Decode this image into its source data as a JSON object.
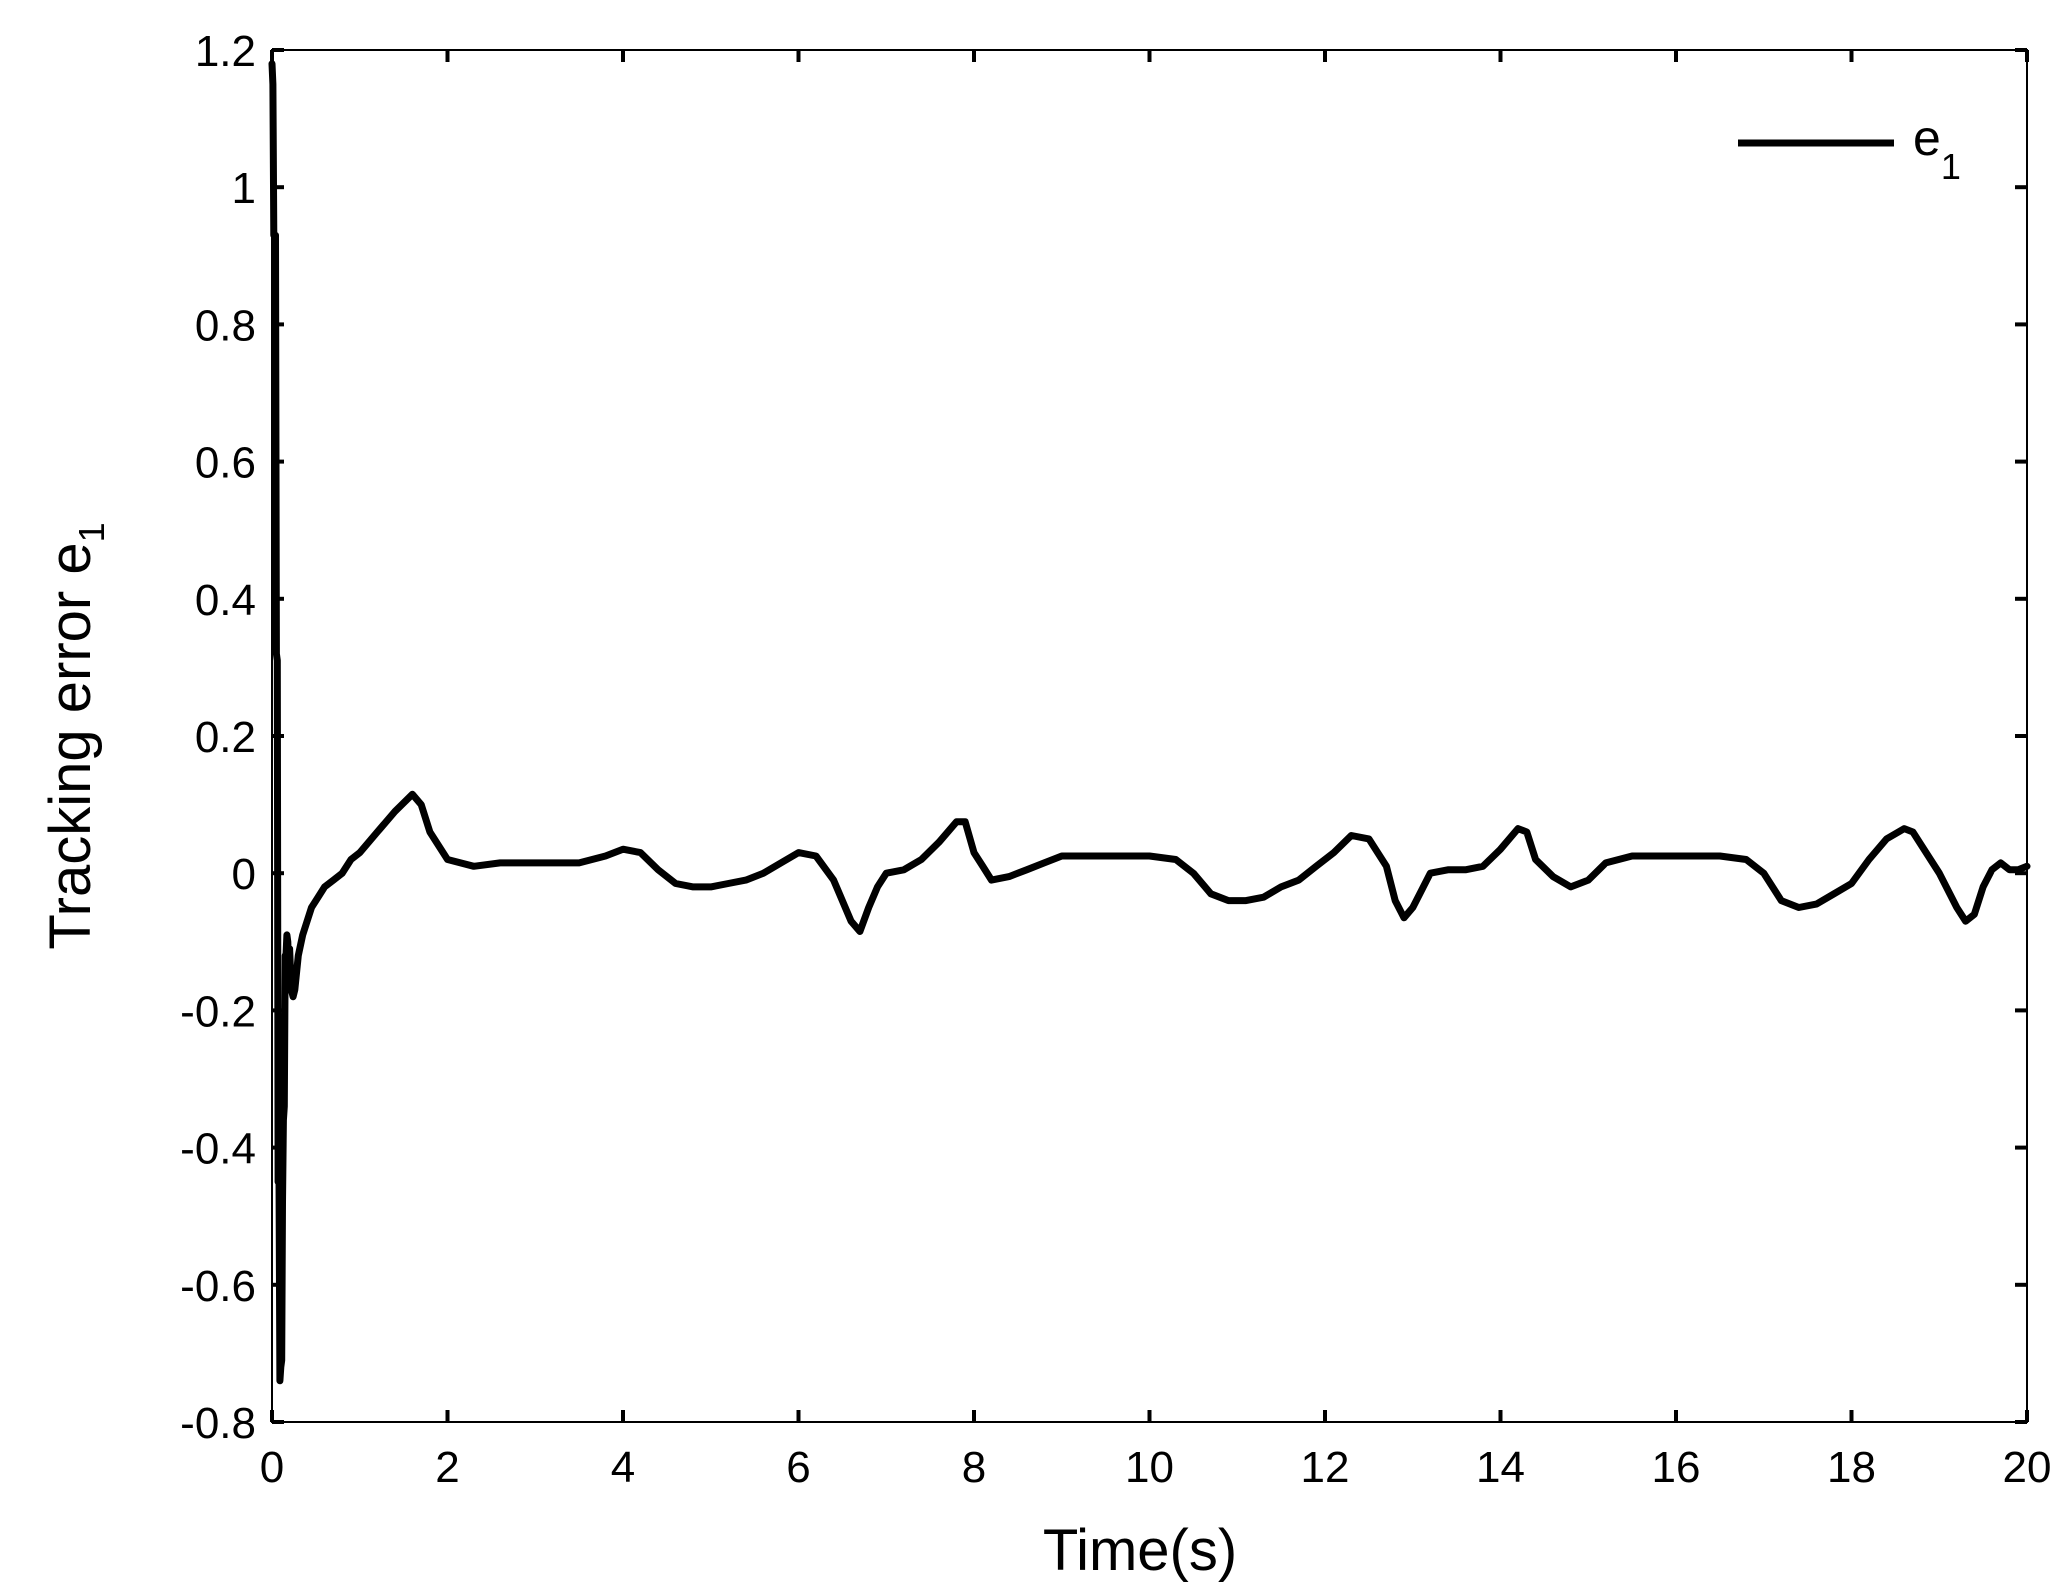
{
  "chart_data": {
    "type": "line",
    "title": "",
    "xlabel": "Time(s)",
    "ylabel": {
      "base": "Tracking error e",
      "subscript": "1"
    },
    "xlim": [
      0,
      20
    ],
    "ylim": [
      -0.8,
      1.2
    ],
    "xticks": [
      0,
      2,
      4,
      6,
      8,
      10,
      12,
      14,
      16,
      18,
      20
    ],
    "yticks": [
      -0.8,
      -0.6,
      -0.4,
      -0.2,
      0,
      0.2,
      0.4,
      0.6,
      0.8,
      1,
      1.2
    ],
    "xtick_labels": [
      "0",
      "2",
      "4",
      "6",
      "8",
      "10",
      "12",
      "14",
      "16",
      "18",
      "20"
    ],
    "ytick_labels": [
      "-0.8",
      "-0.6",
      "-0.4",
      "-0.2",
      "0",
      "0.2",
      "0.4",
      "0.6",
      "0.8",
      "1",
      "1.2"
    ],
    "grid": false,
    "legend_position": "top-right",
    "series": [
      {
        "name": {
          "base": "e",
          "subscript": "1"
        },
        "color": "#000000",
        "x": [
          0.0,
          0.01,
          0.02,
          0.04,
          0.05,
          0.06,
          0.07,
          0.08,
          0.09,
          0.1,
          0.11,
          0.12,
          0.13,
          0.14,
          0.15,
          0.16,
          0.17,
          0.18,
          0.19,
          0.2,
          0.22,
          0.24,
          0.26,
          0.3,
          0.35,
          0.4,
          0.45,
          0.5,
          0.6,
          0.7,
          0.8,
          0.9,
          1.0,
          1.2,
          1.4,
          1.6,
          1.7,
          1.8,
          2.0,
          2.3,
          2.6,
          3.0,
          3.5,
          3.8,
          4.0,
          4.2,
          4.4,
          4.6,
          4.8,
          5.0,
          5.2,
          5.4,
          5.6,
          5.8,
          6.0,
          6.2,
          6.4,
          6.6,
          6.7,
          6.8,
          6.9,
          7.0,
          7.2,
          7.4,
          7.6,
          7.8,
          7.9,
          8.0,
          8.1,
          8.2,
          8.4,
          8.6,
          8.8,
          9.0,
          9.3,
          9.6,
          10.0,
          10.3,
          10.5,
          10.7,
          10.9,
          11.1,
          11.3,
          11.5,
          11.7,
          11.9,
          12.1,
          12.3,
          12.5,
          12.7,
          12.8,
          12.9,
          13.0,
          13.2,
          13.4,
          13.6,
          13.8,
          14.0,
          14.2,
          14.3,
          14.4,
          14.6,
          14.8,
          15.0,
          15.2,
          15.5,
          16.0,
          16.5,
          16.8,
          17.0,
          17.2,
          17.4,
          17.6,
          17.8,
          18.0,
          18.2,
          18.4,
          18.6,
          18.7,
          18.8,
          19.0,
          19.2,
          19.3,
          19.4,
          19.5,
          19.6,
          19.7,
          19.8,
          19.9,
          20.0
        ],
        "y": [
          1.18,
          1.15,
          0.93,
          0.93,
          0.32,
          0.31,
          -0.45,
          -0.44,
          -0.74,
          -0.72,
          -0.71,
          -0.48,
          -0.36,
          -0.34,
          -0.12,
          -0.12,
          -0.09,
          -0.1,
          -0.14,
          -0.11,
          -0.17,
          -0.18,
          -0.17,
          -0.12,
          -0.09,
          -0.07,
          -0.05,
          -0.04,
          -0.02,
          -0.01,
          0.0,
          0.02,
          0.03,
          0.06,
          0.09,
          0.115,
          0.1,
          0.06,
          0.02,
          0.01,
          0.015,
          0.015,
          0.015,
          0.025,
          0.035,
          0.03,
          0.005,
          -0.015,
          -0.02,
          -0.02,
          -0.015,
          -0.01,
          0.0,
          0.015,
          0.03,
          0.025,
          -0.01,
          -0.07,
          -0.085,
          -0.05,
          -0.02,
          0.0,
          0.005,
          0.02,
          0.045,
          0.075,
          0.075,
          0.03,
          0.01,
          -0.01,
          -0.005,
          0.005,
          0.015,
          0.025,
          0.025,
          0.025,
          0.025,
          0.02,
          0.0,
          -0.03,
          -0.04,
          -0.04,
          -0.035,
          -0.02,
          -0.01,
          0.01,
          0.03,
          0.055,
          0.05,
          0.01,
          -0.04,
          -0.065,
          -0.05,
          0.0,
          0.005,
          0.005,
          0.01,
          0.035,
          0.065,
          0.06,
          0.02,
          -0.005,
          -0.02,
          -0.01,
          0.015,
          0.025,
          0.025,
          0.025,
          0.02,
          0.0,
          -0.04,
          -0.05,
          -0.045,
          -0.03,
          -0.015,
          0.02,
          0.05,
          0.065,
          0.06,
          0.04,
          0.0,
          -0.05,
          -0.07,
          -0.06,
          -0.02,
          0.005,
          0.015,
          0.005,
          0.005,
          0.01
        ]
      }
    ]
  }
}
